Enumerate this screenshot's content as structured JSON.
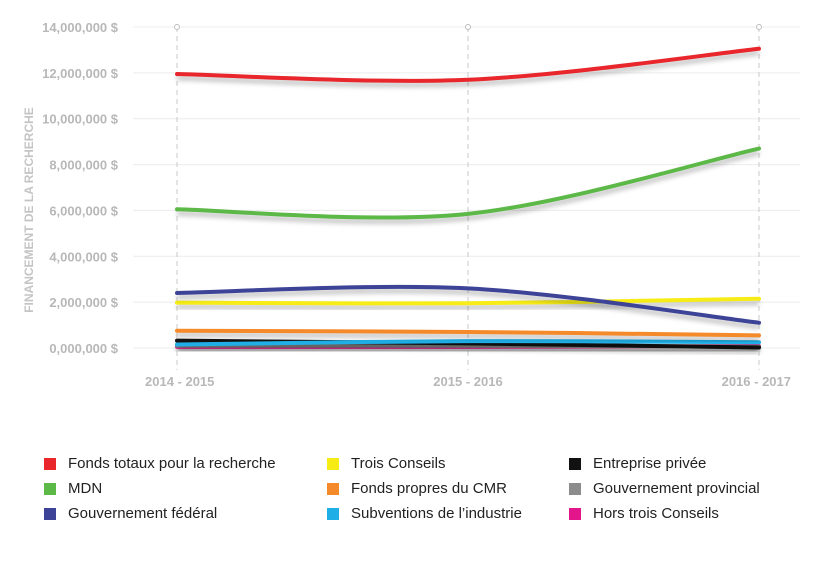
{
  "chart_data": {
    "type": "line",
    "title": "",
    "xlabel": "",
    "ylabel": "FINANCEMENT DE LA RECHERCHE",
    "categories": [
      "2014 - 2015",
      "2015 - 2016",
      "2016 - 2017"
    ],
    "ylim": [
      0,
      14000000
    ],
    "yticks": [
      0,
      2000000,
      4000000,
      6000000,
      8000000,
      10000000,
      12000000,
      14000000
    ],
    "ytick_labels": [
      "0,000,000 $",
      "2,000,000 $",
      "4,000,000 $",
      "6,000,000 $",
      "8,000,000 $",
      "10,000,000 $",
      "12,000,000 $",
      "14,000,000 $"
    ],
    "grid": true,
    "legend_position": "bottom",
    "series": [
      {
        "name": "Fonds totaux pour la recherche",
        "color": "#e8262b",
        "values": [
          11950000,
          11700000,
          13050000
        ]
      },
      {
        "name": "MDN",
        "color": "#5cb947",
        "values": [
          6050000,
          5850000,
          8700000
        ]
      },
      {
        "name": "Gouvernement fédéral",
        "color": "#3d4396",
        "values": [
          2400000,
          2600000,
          1100000
        ]
      },
      {
        "name": "Trois Conseils",
        "color": "#f7ec16",
        "values": [
          1980000,
          1950000,
          2150000
        ]
      },
      {
        "name": "Fonds propres du CMR",
        "color": "#f58a2a",
        "values": [
          750000,
          700000,
          550000
        ]
      },
      {
        "name": "Subventions de l’industrie",
        "color": "#1faee6",
        "values": [
          150000,
          300000,
          250000
        ]
      },
      {
        "name": "Entreprise privée",
        "color": "#111111",
        "values": [
          320000,
          200000,
          20000
        ]
      },
      {
        "name": "Gouvernement provincial",
        "color": "#8c8c8c",
        "values": [
          100000,
          100000,
          50000
        ]
      },
      {
        "name": "Hors trois Conseils",
        "color": "#e2168a",
        "values": [
          50000,
          50000,
          80000
        ]
      }
    ]
  }
}
